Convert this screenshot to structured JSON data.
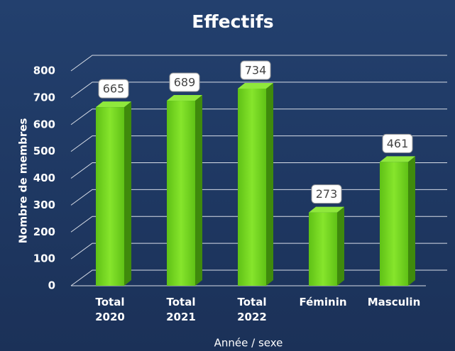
{
  "chart_data": {
    "type": "bar3d",
    "title": "Effectifs",
    "y_label": "Nombre de membres",
    "x_label": "Année / sexe",
    "categories": [
      "Total\n2020",
      "Total\n2021",
      "Total\n2022",
      "Féminin",
      "Masculin"
    ],
    "values": [
      665,
      689,
      734,
      273,
      461
    ],
    "color": "#6fd31e",
    "ylim": [
      0,
      800
    ],
    "yticks": [
      0,
      100,
      200,
      300,
      400,
      500,
      600,
      700,
      800
    ],
    "grid": true
  }
}
